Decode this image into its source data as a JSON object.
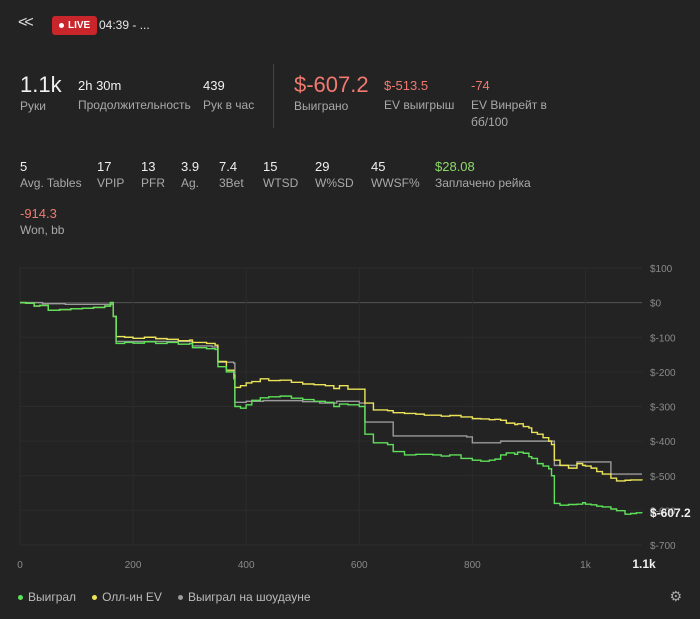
{
  "header": {
    "back_icon": "double-chevron-left-icon",
    "live_label": "LIVE",
    "session_time": "04:39 - ..."
  },
  "top_stats": [
    {
      "value": "1.1k",
      "label": "Руки"
    },
    {
      "value": "2h 30m",
      "label": "Продолжительность"
    },
    {
      "value": "439",
      "label": "Рук в час"
    }
  ],
  "money_stats": [
    {
      "value": "$-607.2",
      "label": "Выиграно"
    },
    {
      "value": "$-513.5",
      "label": "EV выигрыш"
    },
    {
      "value": "-74",
      "label": "EV Винрейт в",
      "label2": "бб/100"
    }
  ],
  "player_stats": [
    {
      "value": "5",
      "label": "Avg. Tables"
    },
    {
      "value": "17",
      "label": "VPIP"
    },
    {
      "value": "13",
      "label": "PFR"
    },
    {
      "value": "3.9",
      "label": "Ag."
    },
    {
      "value": "7.4",
      "label": "3Bet"
    },
    {
      "value": "15",
      "label": "WTSD"
    },
    {
      "value": "29",
      "label": "W%SD"
    },
    {
      "value": "45",
      "label": "WWSF%"
    },
    {
      "value": "$28.08",
      "label": "Заплачено рейка"
    }
  ],
  "won_bb": {
    "value": "-914.3",
    "label": "Won, bb"
  },
  "colors": {
    "won": "#5fe05a",
    "allin_ev": "#ebe35a",
    "showdown": "#9a9a9a",
    "negative": "#f07a70",
    "positive": "#8ed96a"
  },
  "chart_data": {
    "type": "line",
    "xlim": [
      0,
      1100
    ],
    "ylim": [
      -700,
      100
    ],
    "x_ticks": [
      "0",
      "200",
      "400",
      "600",
      "800",
      "1k",
      "1.1k"
    ],
    "y_ticks": [
      "$100",
      "$0",
      "$-100",
      "$-200",
      "$-300",
      "$-400",
      "$-500",
      "$-600",
      "$-700"
    ],
    "end_label": "$-607.2",
    "grid": true,
    "legend_position": "bottom-left",
    "series": [
      {
        "name": "Выиграл",
        "color": "#5fe05a",
        "points": [
          [
            0,
            0
          ],
          [
            10,
            -2
          ],
          [
            25,
            -10
          ],
          [
            35,
            -8
          ],
          [
            50,
            -22
          ],
          [
            70,
            -20
          ],
          [
            90,
            -18
          ],
          [
            110,
            -16
          ],
          [
            130,
            -14
          ],
          [
            150,
            -10
          ],
          [
            160,
            0
          ],
          [
            165,
            -40
          ],
          [
            170,
            -118
          ],
          [
            185,
            -115
          ],
          [
            200,
            -117
          ],
          [
            220,
            -113
          ],
          [
            240,
            -118
          ],
          [
            260,
            -115
          ],
          [
            280,
            -120
          ],
          [
            300,
            -118
          ],
          [
            305,
            -130
          ],
          [
            330,
            -133
          ],
          [
            345,
            -135
          ],
          [
            350,
            -185
          ],
          [
            365,
            -200
          ],
          [
            378,
            -220
          ],
          [
            380,
            -300
          ],
          [
            390,
            -305
          ],
          [
            400,
            -295
          ],
          [
            410,
            -282
          ],
          [
            425,
            -275
          ],
          [
            440,
            -272
          ],
          [
            460,
            -270
          ],
          [
            480,
            -276
          ],
          [
            500,
            -280
          ],
          [
            520,
            -285
          ],
          [
            540,
            -288
          ],
          [
            555,
            -300
          ],
          [
            565,
            -293
          ],
          [
            580,
            -295
          ],
          [
            600,
            -300
          ],
          [
            610,
            -380
          ],
          [
            625,
            -405
          ],
          [
            650,
            -410
          ],
          [
            660,
            -430
          ],
          [
            680,
            -440
          ],
          [
            700,
            -438
          ],
          [
            715,
            -438
          ],
          [
            730,
            -440
          ],
          [
            745,
            -443
          ],
          [
            760,
            -440
          ],
          [
            780,
            -450
          ],
          [
            800,
            -455
          ],
          [
            815,
            -458
          ],
          [
            830,
            -455
          ],
          [
            840,
            -452
          ],
          [
            850,
            -440
          ],
          [
            860,
            -434
          ],
          [
            875,
            -438
          ],
          [
            880,
            -432
          ],
          [
            890,
            -435
          ],
          [
            900,
            -445
          ],
          [
            905,
            -450
          ],
          [
            915,
            -465
          ],
          [
            925,
            -472
          ],
          [
            935,
            -480
          ],
          [
            940,
            -500
          ],
          [
            945,
            -580
          ],
          [
            955,
            -585
          ],
          [
            970,
            -583
          ],
          [
            985,
            -582
          ],
          [
            995,
            -578
          ],
          [
            1000,
            -582
          ],
          [
            1010,
            -584
          ],
          [
            1020,
            -588
          ],
          [
            1030,
            -590
          ],
          [
            1045,
            -596
          ],
          [
            1055,
            -601
          ],
          [
            1070,
            -611
          ],
          [
            1080,
            -609
          ],
          [
            1090,
            -607
          ],
          [
            1100,
            -607.2
          ]
        ]
      },
      {
        "name": "Олл-ин EV",
        "color": "#ebe35a",
        "points": [
          [
            0,
            0
          ],
          [
            10,
            -2
          ],
          [
            25,
            -10
          ],
          [
            35,
            -8
          ],
          [
            50,
            -22
          ],
          [
            70,
            -20
          ],
          [
            90,
            -18
          ],
          [
            110,
            -16
          ],
          [
            130,
            -14
          ],
          [
            150,
            -10
          ],
          [
            160,
            0
          ],
          [
            165,
            -40
          ],
          [
            170,
            -98
          ],
          [
            185,
            -100
          ],
          [
            200,
            -103
          ],
          [
            220,
            -100
          ],
          [
            240,
            -104
          ],
          [
            260,
            -106
          ],
          [
            280,
            -110
          ],
          [
            300,
            -108
          ],
          [
            305,
            -115
          ],
          [
            330,
            -118
          ],
          [
            345,
            -123
          ],
          [
            350,
            -170
          ],
          [
            365,
            -195
          ],
          [
            378,
            -210
          ],
          [
            380,
            -245
          ],
          [
            390,
            -240
          ],
          [
            400,
            -232
          ],
          [
            410,
            -228
          ],
          [
            425,
            -220
          ],
          [
            440,
            -225
          ],
          [
            460,
            -224
          ],
          [
            480,
            -230
          ],
          [
            500,
            -235
          ],
          [
            520,
            -237
          ],
          [
            540,
            -240
          ],
          [
            555,
            -248
          ],
          [
            565,
            -240
          ],
          [
            580,
            -250
          ],
          [
            600,
            -250
          ],
          [
            610,
            -290
          ],
          [
            625,
            -310
          ],
          [
            650,
            -312
          ],
          [
            660,
            -318
          ],
          [
            680,
            -320
          ],
          [
            700,
            -322
          ],
          [
            715,
            -325
          ],
          [
            730,
            -325
          ],
          [
            745,
            -328
          ],
          [
            760,
            -326
          ],
          [
            780,
            -330
          ],
          [
            800,
            -335
          ],
          [
            815,
            -336
          ],
          [
            830,
            -338
          ],
          [
            840,
            -337
          ],
          [
            850,
            -340
          ],
          [
            860,
            -348
          ],
          [
            875,
            -352
          ],
          [
            880,
            -350
          ],
          [
            890,
            -358
          ],
          [
            900,
            -362
          ],
          [
            905,
            -375
          ],
          [
            915,
            -380
          ],
          [
            925,
            -390
          ],
          [
            935,
            -400
          ],
          [
            940,
            -410
          ],
          [
            945,
            -455
          ],
          [
            955,
            -470
          ],
          [
            970,
            -478
          ],
          [
            985,
            -465
          ],
          [
            995,
            -470
          ],
          [
            1000,
            -472
          ],
          [
            1010,
            -478
          ],
          [
            1020,
            -488
          ],
          [
            1030,
            -495
          ],
          [
            1045,
            -507
          ],
          [
            1055,
            -515
          ],
          [
            1070,
            -513
          ],
          [
            1080,
            -512
          ],
          [
            1090,
            -512
          ],
          [
            1100,
            -513.5
          ]
        ]
      },
      {
        "name": "Выиграл на шоудауне",
        "color": "#9a9a9a",
        "points": [
          [
            0,
            0
          ],
          [
            40,
            -3
          ],
          [
            80,
            -5
          ],
          [
            120,
            -5
          ],
          [
            160,
            -5
          ],
          [
            165,
            -40
          ],
          [
            170,
            -112
          ],
          [
            200,
            -112
          ],
          [
            240,
            -112
          ],
          [
            280,
            -112
          ],
          [
            305,
            -125
          ],
          [
            340,
            -128
          ],
          [
            345,
            -128
          ],
          [
            350,
            -172
          ],
          [
            378,
            -175
          ],
          [
            380,
            -288
          ],
          [
            400,
            -285
          ],
          [
            430,
            -283
          ],
          [
            460,
            -283
          ],
          [
            500,
            -286
          ],
          [
            530,
            -290
          ],
          [
            555,
            -290
          ],
          [
            560,
            -285
          ],
          [
            600,
            -290
          ],
          [
            610,
            -345
          ],
          [
            650,
            -345
          ],
          [
            660,
            -385
          ],
          [
            700,
            -385
          ],
          [
            730,
            -385
          ],
          [
            760,
            -385
          ],
          [
            790,
            -388
          ],
          [
            800,
            -405
          ],
          [
            840,
            -405
          ],
          [
            845,
            -405
          ],
          [
            850,
            -400
          ],
          [
            900,
            -400
          ],
          [
            940,
            -400
          ],
          [
            945,
            -470
          ],
          [
            955,
            -470
          ],
          [
            975,
            -470
          ],
          [
            985,
            -460
          ],
          [
            1000,
            -460
          ],
          [
            1040,
            -460
          ],
          [
            1045,
            -495
          ],
          [
            1100,
            -495
          ]
        ]
      }
    ]
  },
  "legend": [
    {
      "label": "Выиграл",
      "color": "#5fe05a"
    },
    {
      "label": "Олл-ин EV",
      "color": "#ebe35a"
    },
    {
      "label": "Выиграл на шоудауне",
      "color": "#9a9a9a"
    }
  ],
  "settings_icon": "gear-icon"
}
